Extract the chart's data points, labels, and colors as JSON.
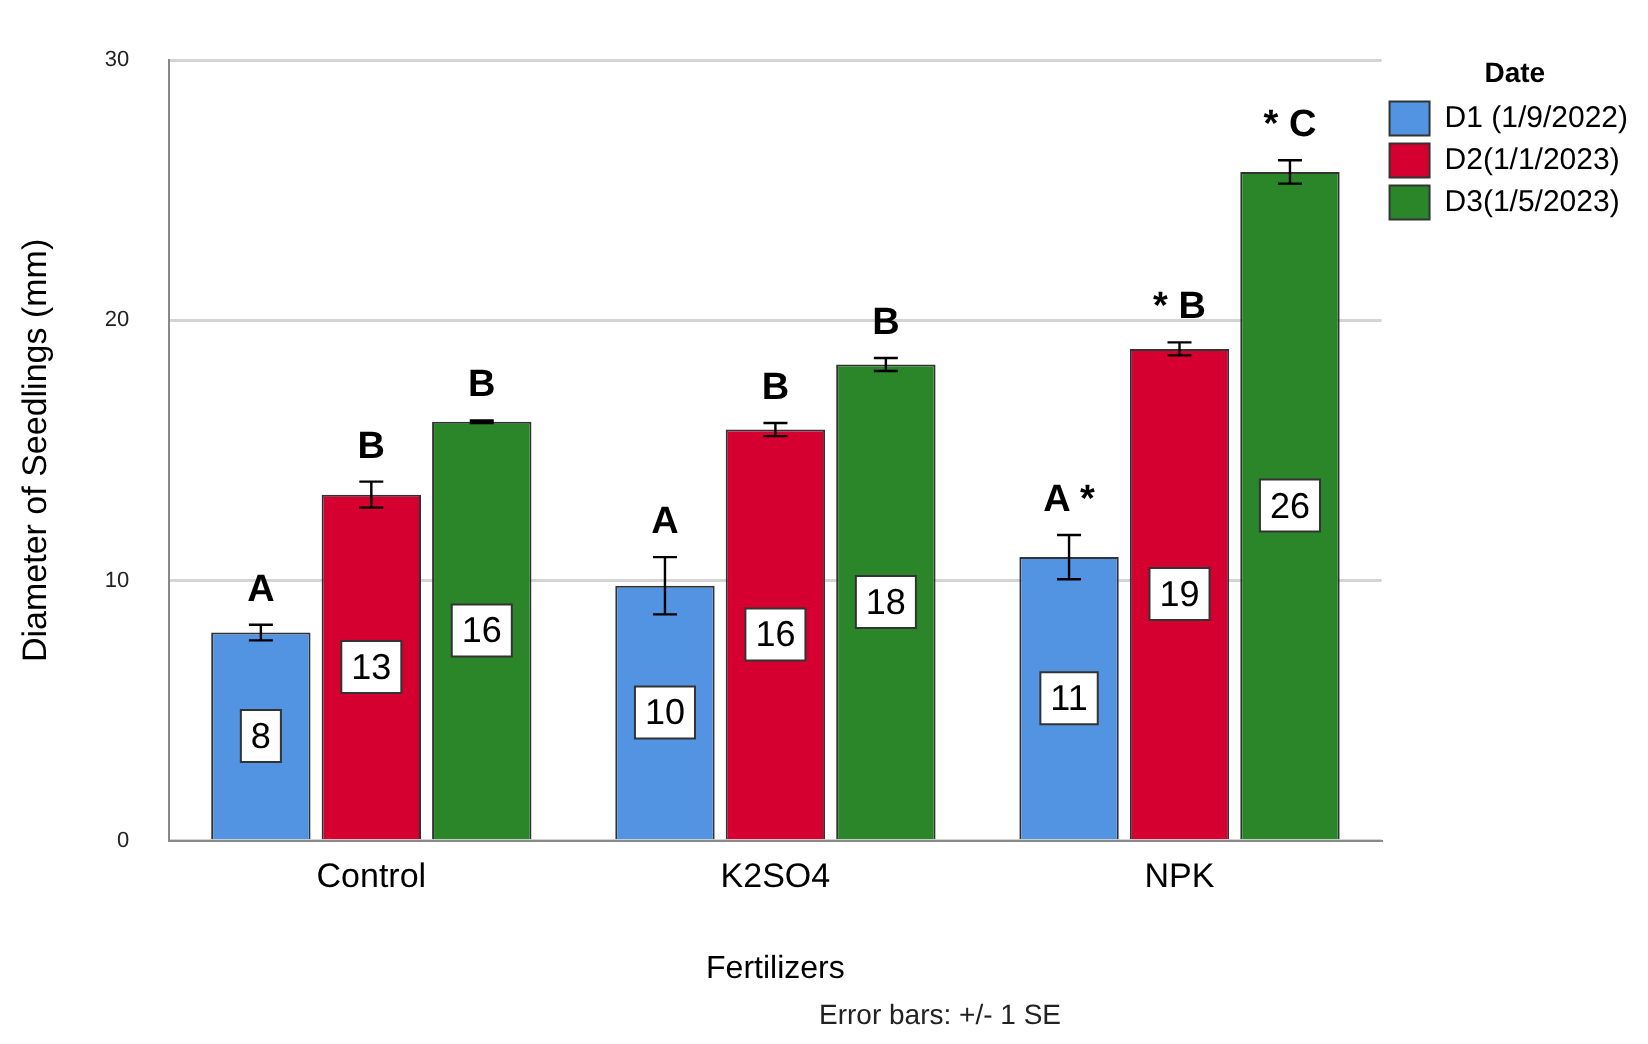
{
  "chart_data": {
    "type": "bar",
    "xlabel": "Fertilizers",
    "ylabel": "Diameter of Seedlings (mm)",
    "legend_title": "Date",
    "legend": "top right",
    "grid": "y",
    "categories": [
      "Control",
      "K2SO4",
      "NPK"
    ],
    "ylim": [
      0,
      30
    ],
    "yticks": [
      0,
      10,
      20,
      30
    ],
    "series": [
      {
        "name": "D1 (1/9/2022)",
        "color": "#5294e2",
        "values": [
          8.0,
          9.8,
          10.9
        ],
        "errors": [
          0.3,
          1.1,
          0.85
        ],
        "value_labels": [
          "8",
          "10",
          "11"
        ]
      },
      {
        "name": "D2(1/1/2023)",
        "color": "#d5002f",
        "values": [
          13.3,
          15.8,
          18.9
        ],
        "errors": [
          0.5,
          0.25,
          0.25
        ],
        "value_labels": [
          "13",
          "16",
          "19"
        ]
      },
      {
        "name": "D3(1/5/2023)",
        "color": "#2a8629",
        "values": [
          16.1,
          18.3,
          25.7
        ],
        "errors": [
          0.05,
          0.25,
          0.45
        ],
        "value_labels": [
          "16",
          "18",
          "26"
        ]
      }
    ],
    "annotations": [
      "A",
      "B",
      "B",
      "A",
      "B",
      "B",
      "A *",
      "* B",
      "* C",
      "Error bars: +/- 1 SE"
    ]
  }
}
